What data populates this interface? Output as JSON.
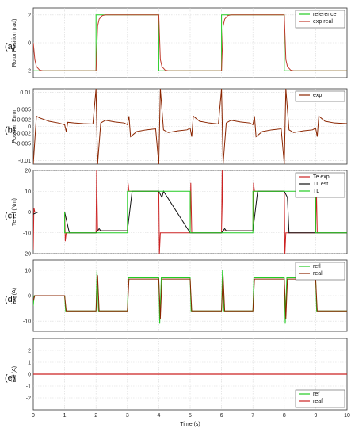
{
  "chart_data": [
    {
      "type": "line",
      "panel_label": "(a)",
      "ylabel": "Rotor Position (rad)",
      "xlim": [
        0,
        10
      ],
      "ylim": [
        -2.5,
        2.5
      ],
      "yticks": [
        -2,
        0,
        2
      ],
      "grid": true,
      "legend": "top-right",
      "series": [
        {
          "name": "reference",
          "color": "#22cc22",
          "x": [
            0,
            2,
            2,
            4,
            4,
            6,
            6,
            8,
            8,
            10
          ],
          "y": [
            -2,
            -2,
            2,
            2,
            -2,
            -2,
            2,
            2,
            -2,
            -2
          ]
        },
        {
          "name": "exp real",
          "color": "#c0392b",
          "x": [
            0,
            0.05,
            0.1,
            0.2,
            0.3,
            2,
            2.05,
            2.1,
            2.2,
            2.3,
            4,
            4.05,
            4.1,
            4.2,
            4.3,
            6,
            6.05,
            6.1,
            6.2,
            6.3,
            8,
            8.05,
            8.1,
            8.2,
            8.3,
            10
          ],
          "y": [
            0,
            -1.2,
            -1.7,
            -1.95,
            -2,
            -2,
            1.2,
            1.7,
            1.95,
            2,
            2,
            -1.2,
            -1.7,
            -1.95,
            -2,
            -2,
            1.2,
            1.7,
            1.95,
            2,
            2,
            -1.2,
            -1.7,
            -1.95,
            -2,
            -2
          ]
        }
      ]
    },
    {
      "type": "line",
      "panel_label": "(b)",
      "ylabel": "Position Error",
      "xlim": [
        0,
        10
      ],
      "ylim": [
        -0.011,
        0.011
      ],
      "yticks": [
        -0.01,
        -0.005,
        -0.002,
        0,
        0.002,
        0.005,
        0.01
      ],
      "ytick_labels": [
        "-0.01",
        "-0.005",
        "-0.002",
        "0",
        "0.002",
        "0.005",
        "0.01"
      ],
      "grid": true,
      "legend": "top-right",
      "series": [
        {
          "name": "exp",
          "color": "#8b2500",
          "x": [
            0,
            0.1,
            0.2,
            0.5,
            0.8,
            1.0,
            1.05,
            1.1,
            1.3,
            1.6,
            1.9,
            2.0,
            2.05,
            2.15,
            2.3,
            2.6,
            2.9,
            3.0,
            3.05,
            3.1,
            3.3,
            3.6,
            3.9,
            4.0,
            4.05,
            4.15,
            4.3,
            4.6,
            4.9,
            5.0,
            5.05,
            5.1,
            5.3,
            5.6,
            5.9,
            6.0,
            6.05,
            6.15,
            6.3,
            6.6,
            6.9,
            7.0,
            7.05,
            7.1,
            7.3,
            7.6,
            7.9,
            8.0,
            8.05,
            8.15,
            8.3,
            8.6,
            8.9,
            9.0,
            9.05,
            9.1,
            9.3,
            9.6,
            10
          ],
          "y": [
            -0.011,
            0.003,
            0.0025,
            0.0015,
            0.001,
            0.0005,
            -0.0015,
            0.0012,
            0.001,
            0.0008,
            0.0007,
            0.011,
            -0.011,
            0.001,
            0.0018,
            0.0013,
            0.001,
            0.0005,
            0.003,
            -0.003,
            -0.0015,
            -0.001,
            -0.0007,
            -0.011,
            0.011,
            -0.001,
            -0.0018,
            -0.0013,
            -0.001,
            -0.0005,
            -0.003,
            0.003,
            0.0015,
            0.001,
            0.0007,
            0.011,
            -0.011,
            0.001,
            0.0018,
            0.0013,
            0.001,
            0.0005,
            0.003,
            -0.003,
            -0.0015,
            -0.001,
            -0.0007,
            -0.011,
            0.011,
            -0.001,
            -0.0018,
            -0.0013,
            -0.001,
            -0.0005,
            -0.003,
            0.003,
            0.0015,
            0.001,
            0.0008
          ]
        }
      ]
    },
    {
      "type": "line",
      "panel_label": "(c)",
      "ylabel": "Te ref (Nm)",
      "xlim": [
        0,
        10
      ],
      "ylim": [
        -20,
        20
      ],
      "yticks": [
        -20,
        -10,
        0,
        10,
        20
      ],
      "grid": true,
      "legend": "top-right",
      "series": [
        {
          "name": "Te exp",
          "color": "#cc2222",
          "x": [
            0,
            0.02,
            0.05,
            1,
            1.02,
            1.05,
            2,
            2.02,
            2.05,
            3,
            3.02,
            3.05,
            4,
            4.02,
            4.05,
            5,
            5.02,
            5.05,
            6,
            6.02,
            6.05,
            7,
            7.02,
            7.05,
            8,
            8.02,
            8.05,
            9,
            9.02,
            9.05,
            10
          ],
          "y": [
            -18,
            2,
            0,
            0,
            -14,
            -10,
            -10,
            20,
            -9,
            -9,
            14,
            10,
            10,
            -20,
            -10,
            -10,
            14,
            -10,
            -10,
            20,
            -9,
            -9,
            14,
            10,
            10,
            -20,
            -10,
            -10,
            14,
            -10,
            -10
          ]
        },
        {
          "name": "TL est",
          "color": "#111111",
          "x": [
            0,
            0.15,
            1,
            1.15,
            2,
            2.1,
            2.15,
            3,
            3.15,
            4,
            4.1,
            4.15,
            5,
            5.15,
            6,
            6.1,
            6.15,
            7,
            7.15,
            8,
            8.1,
            8.15,
            9,
            9.15,
            10
          ],
          "y": [
            -1,
            0,
            0,
            -10,
            -10,
            -8,
            -9,
            -9,
            10,
            10,
            7,
            10,
            -10,
            -10,
            -10,
            -8,
            -9,
            -9,
            10,
            10,
            7,
            -10,
            -10,
            -10,
            -10
          ]
        },
        {
          "name": "TL",
          "color": "#22cc22",
          "x": [
            0,
            1,
            1,
            3,
            3,
            5,
            5,
            7,
            7,
            9,
            9,
            10
          ],
          "y": [
            0,
            0,
            -10,
            -10,
            10,
            10,
            -10,
            -10,
            10,
            10,
            -10,
            -10
          ]
        }
      ]
    },
    {
      "type": "line",
      "panel_label": "(d)",
      "ylabel": "isq (A)",
      "xlim": [
        0,
        10
      ],
      "ylim": [
        -14,
        14
      ],
      "yticks": [
        -10,
        0,
        10
      ],
      "grid": true,
      "legend": "top-right",
      "series": [
        {
          "name": "refl",
          "color": "#22cc22",
          "x": [
            0,
            0.03,
            1,
            1.03,
            2,
            2.03,
            2.08,
            3,
            3.03,
            4,
            4.03,
            4.08,
            5,
            5.03,
            6,
            6.03,
            6.08,
            7,
            7.03,
            8,
            8.03,
            8.08,
            9,
            9.03,
            10
          ],
          "y": [
            -4,
            0,
            0,
            -6,
            -6,
            10,
            -6,
            -6,
            7,
            7,
            -11,
            7,
            7,
            -6,
            -6,
            10,
            -6,
            -6,
            7,
            7,
            -11,
            7,
            7,
            -6,
            -6
          ]
        },
        {
          "name": "real",
          "color": "#8b2500",
          "x": [
            0,
            0.05,
            1,
            1.05,
            2,
            2.05,
            2.1,
            3,
            3.05,
            4,
            4.05,
            4.1,
            5,
            5.05,
            6,
            6.05,
            6.1,
            7,
            7.05,
            8,
            8.05,
            8.1,
            9,
            9.05,
            10
          ],
          "y": [
            -2,
            0,
            0,
            -6,
            -6,
            8,
            -6,
            -6,
            6.5,
            6.5,
            -9,
            6.5,
            6.5,
            -6,
            -6,
            8,
            -6,
            -6,
            6.5,
            6.5,
            -9,
            6.5,
            6.5,
            -6,
            -6
          ]
        }
      ]
    },
    {
      "type": "line",
      "panel_label": "(e)",
      "ylabel": "isd (A)",
      "xlabel": "Time (s)",
      "xlim": [
        0,
        10
      ],
      "ylim": [
        -3,
        3
      ],
      "yticks": [
        -2,
        -1,
        0,
        1,
        2
      ],
      "xticks": [
        0,
        1,
        2,
        3,
        4,
        5,
        6,
        7,
        8,
        9,
        10
      ],
      "grid": true,
      "legend": "bottom-right",
      "series": [
        {
          "name": "ref",
          "color": "#22cc22",
          "x": [
            0,
            10
          ],
          "y": [
            0,
            0
          ]
        },
        {
          "name": "reaf",
          "color": "#cc2222",
          "x": [
            0,
            2,
            4,
            6,
            8,
            10
          ],
          "y": [
            0,
            0,
            0,
            0,
            0,
            0
          ]
        }
      ]
    }
  ]
}
